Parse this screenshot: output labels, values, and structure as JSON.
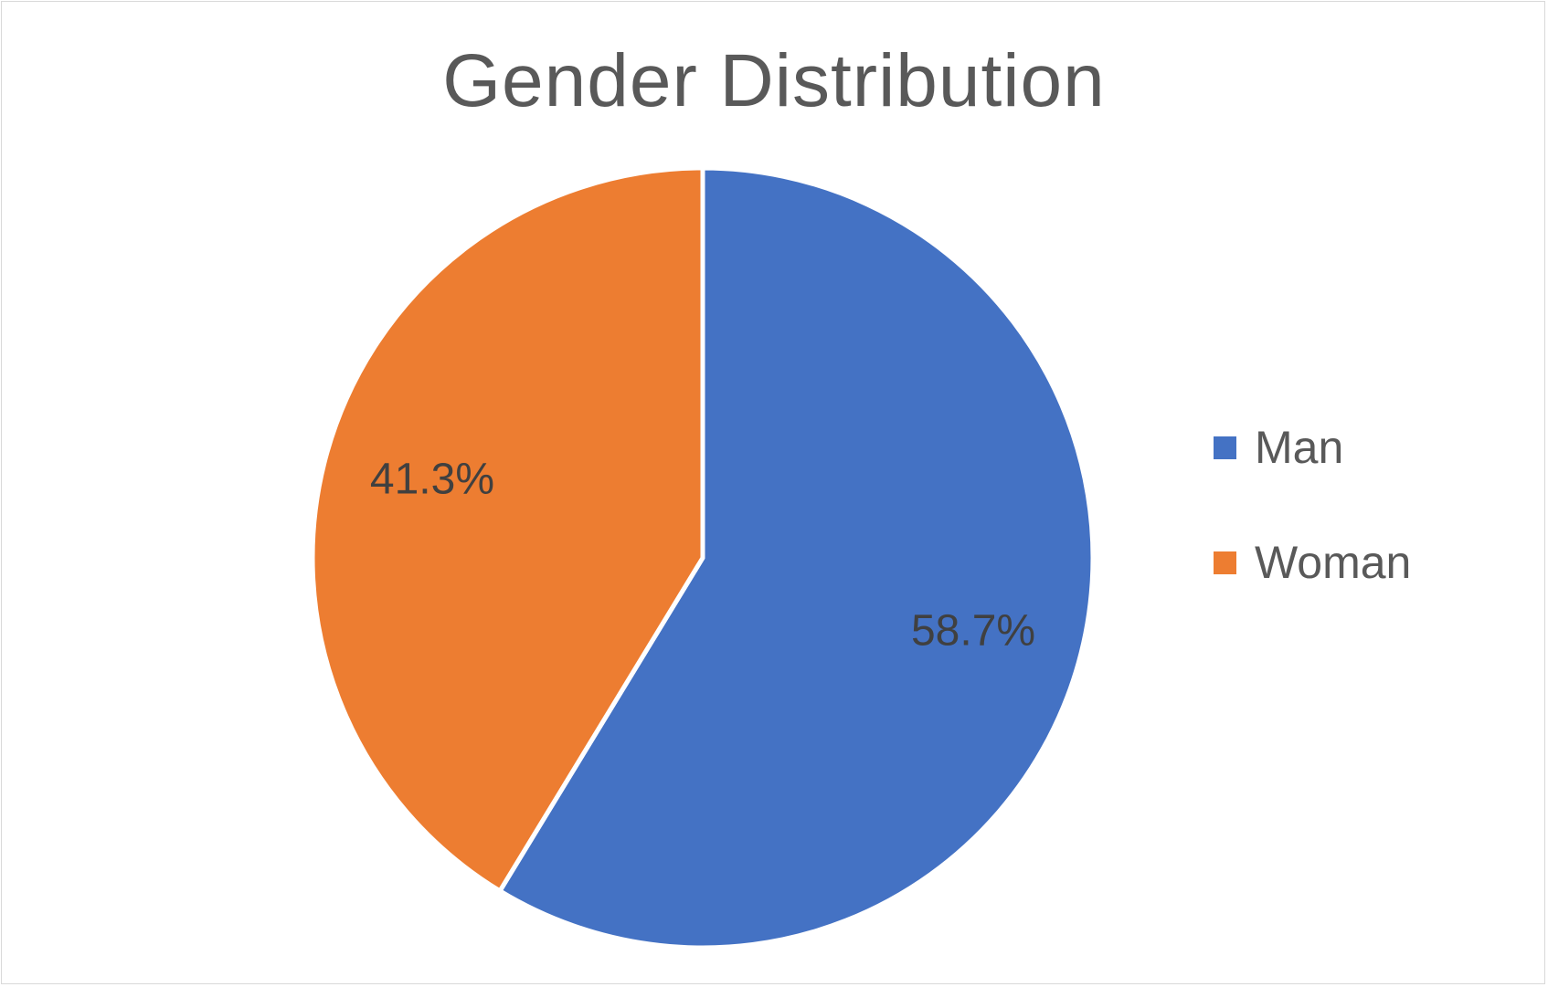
{
  "chart_data": {
    "type": "pie",
    "title": "Gender Distribution",
    "categories": [
      "Man",
      "Woman"
    ],
    "values": [
      58.7,
      41.3
    ],
    "labels": [
      "58.7%",
      "41.3%"
    ],
    "colors": [
      "#4472C4",
      "#ED7D31"
    ],
    "start_angle_deg": 0,
    "direction": "clockwise",
    "legend": {
      "placement": "right",
      "entries": [
        {
          "label": "Man",
          "color": "#4472C4"
        },
        {
          "label": "Woman",
          "color": "#ED7D31"
        }
      ]
    }
  }
}
